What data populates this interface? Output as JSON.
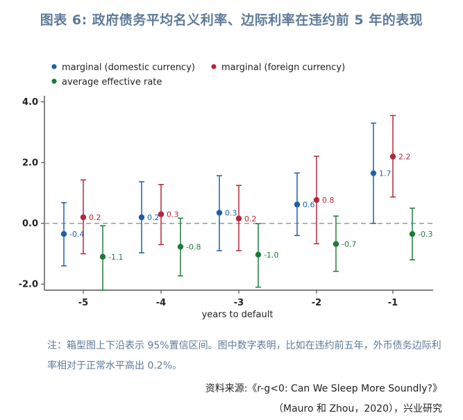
{
  "title": "图表 6:   政府债务平均名义利率、边际利率在违约前 5 年的表现",
  "chart_data": {
    "type": "scatter",
    "subtype": "errorbar",
    "xlabel": "years to default",
    "categories": [
      "-5",
      "-4",
      "-3",
      "-2",
      "-1"
    ],
    "ylim": [
      -2.2,
      4.2
    ],
    "yticks": [
      "4.0",
      "2.0",
      "0.0",
      "-2.0"
    ],
    "ytick_values": [
      4,
      2,
      0,
      -2
    ],
    "reference_line": 0,
    "legend_position": "top-left",
    "series": [
      {
        "name": "marginal (domestic currency)",
        "color": "#1f5fa8",
        "values": [
          -0.35,
          0.2,
          0.35,
          0.62,
          1.65
        ],
        "low": [
          -1.4,
          -0.97,
          -0.9,
          -0.4,
          0.0
        ],
        "high": [
          0.68,
          1.37,
          1.57,
          1.66,
          3.3
        ],
        "labels": [
          "-0.4",
          "0.2",
          "0.3",
          "0.6",
          "1.7"
        ]
      },
      {
        "name": "marginal (foreign currency)",
        "color": "#b5263a",
        "values": [
          0.2,
          0.3,
          0.16,
          0.77,
          2.2
        ],
        "low": [
          -1.0,
          -0.7,
          -0.9,
          -0.67,
          0.87
        ],
        "high": [
          1.43,
          1.28,
          1.25,
          2.21,
          3.55
        ],
        "labels": [
          "0.2",
          "0.3",
          "0.2",
          "0.8",
          "2.2"
        ]
      },
      {
        "name": "average effective rate",
        "color": "#1f7a3a",
        "values": [
          -1.1,
          -0.77,
          -1.03,
          -0.68,
          -0.35
        ],
        "low": [
          -2.2,
          -1.73,
          -2.1,
          -1.58,
          -1.2
        ],
        "high": [
          -0.08,
          0.17,
          -0.01,
          0.24,
          0.5
        ],
        "labels": [
          "-1.1",
          "-0.8",
          "-1.0",
          "-0.7",
          "-0.3"
        ]
      }
    ]
  },
  "note": "注：箱型图上下沿表示 95%置信区间。图中数字表明，比如在违约前五年，外币债务边际利率相对于正常水平高出 0.2%。",
  "source_line1": "资料来源:《r-g<0: Can We Sleep More Soundly?》",
  "source_line2": "（Mauro 和 Zhou，2020），兴业研究"
}
